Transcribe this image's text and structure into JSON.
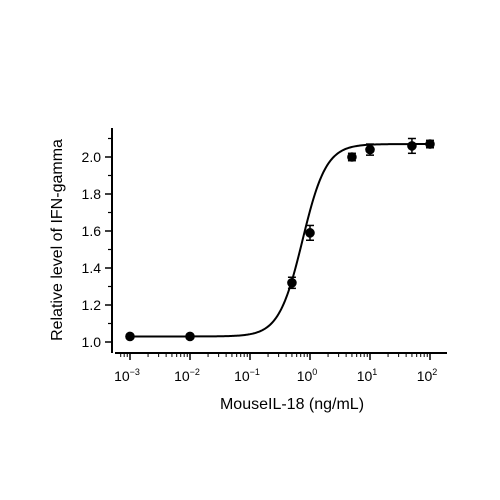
{
  "chart_data": {
    "type": "scatter",
    "xscale": "log",
    "xlabel": "MouseIL-18 (ng/mL)",
    "ylabel": "Relative level of IFN-gamma",
    "xlim": [
      0.001,
      100
    ],
    "ylim": [
      1.0,
      2.1
    ],
    "x_ticks": [
      {
        "base": "10",
        "exp": "-3"
      },
      {
        "base": "10",
        "exp": "-2"
      },
      {
        "base": "10",
        "exp": "-1"
      },
      {
        "base": "10",
        "exp": "0"
      },
      {
        "base": "10",
        "exp": "1"
      },
      {
        "base": "10",
        "exp": "2"
      }
    ],
    "y_ticks": [
      "1.0",
      "1.2",
      "1.4",
      "1.6",
      "1.8",
      "2.0"
    ],
    "points": [
      {
        "x": 0.001,
        "y": 1.03,
        "err": 0.0
      },
      {
        "x": 0.01,
        "y": 1.03,
        "err": 0.0
      },
      {
        "x": 0.5,
        "y": 1.32,
        "err": 0.03
      },
      {
        "x": 1.0,
        "y": 1.59,
        "err": 0.04
      },
      {
        "x": 5.0,
        "y": 2.0,
        "err": 0.02
      },
      {
        "x": 10.0,
        "y": 2.04,
        "err": 0.03
      },
      {
        "x": 50.0,
        "y": 2.06,
        "err": 0.04
      },
      {
        "x": 100.0,
        "y": 2.07,
        "err": 0.02
      }
    ],
    "fit": {
      "model": "4PL",
      "bottom": 1.03,
      "top": 2.07,
      "ec50": 0.75,
      "hill": 2.2
    },
    "grid": false,
    "legend": "none",
    "color": "#000000"
  }
}
